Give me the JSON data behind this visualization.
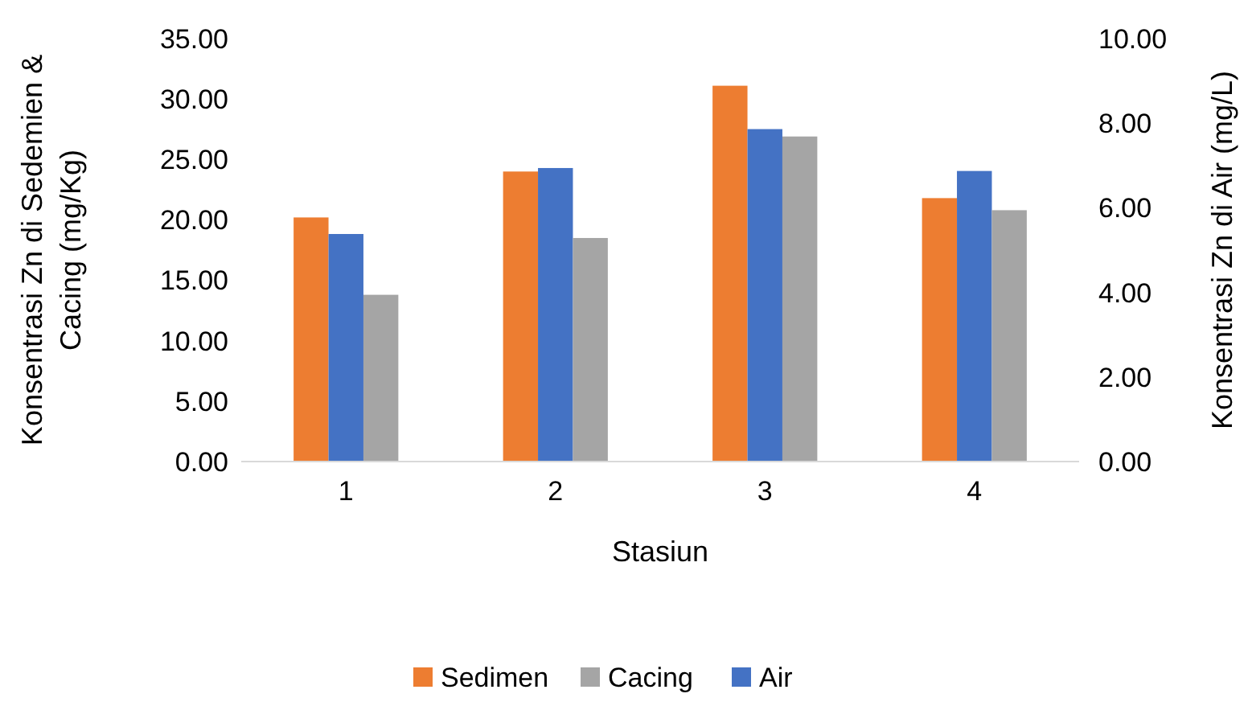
{
  "chart_data": {
    "type": "bar",
    "xlabel": "Stasiun",
    "ylabel": "Konsentrasi Zn di Sedemien & Cacing (mg/Kg)",
    "y2label": "Konsentrasi Zn di Air (mg/L)",
    "categories": [
      "1",
      "2",
      "3",
      "4"
    ],
    "series": [
      {
        "name": "Sedimen",
        "color": "#ed7d31",
        "values": [
          20.2,
          24.0,
          31.1,
          21.8
        ]
      },
      {
        "name": "Air",
        "color": "#4472c4",
        "axis": "y2",
        "values": [
          5.38,
          6.94,
          7.86,
          6.87
        ]
      },
      {
        "name": "Cacing",
        "color": "#a5a5a5",
        "values": [
          13.8,
          18.5,
          26.9,
          20.8
        ]
      }
    ],
    "ylim": [
      0,
      35
    ],
    "yticks": [
      {
        "value": 0,
        "label": "0.00"
      },
      {
        "value": 5,
        "label": "5.00"
      },
      {
        "value": 10,
        "label": "10.00"
      },
      {
        "value": 15,
        "label": "15.00"
      },
      {
        "value": 20,
        "label": "20.00"
      },
      {
        "value": 25,
        "label": "25.00"
      },
      {
        "value": 30,
        "label": "30.00"
      },
      {
        "value": 35,
        "label": "35.00"
      }
    ],
    "y2lim": [
      0,
      10
    ],
    "y2ticks": [
      {
        "value": 0,
        "label": "0.00"
      },
      {
        "value": 2,
        "label": "2.00"
      },
      {
        "value": 4,
        "label": "4.00"
      },
      {
        "value": 6,
        "label": "6.00"
      },
      {
        "value": 8,
        "label": "8.00"
      },
      {
        "value": 10,
        "label": "10.00"
      }
    ],
    "grid": false,
    "legend": "bottom"
  }
}
